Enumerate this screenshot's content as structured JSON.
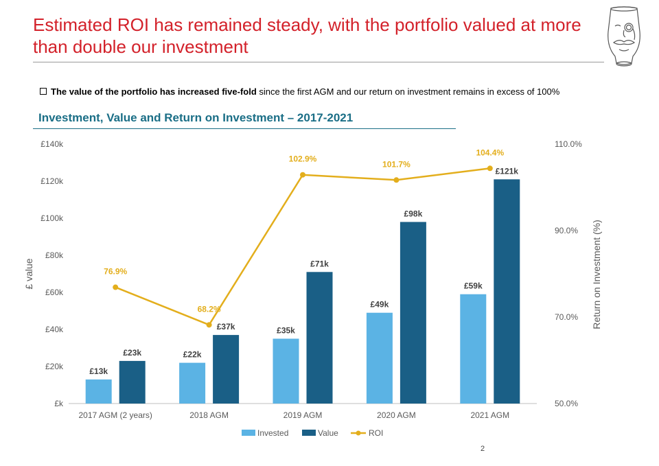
{
  "slide": {
    "title": "Estimated ROI has remained steady, with the portfolio valued at more than double our investment",
    "bullet_bold": "The value of the portfolio has increased five-fold",
    "bullet_rest": " since the first AGM and our return on investment remains in excess of 100%",
    "page_number": "2"
  },
  "colors": {
    "title": "#d3212a",
    "chart_title": "#1a6e86",
    "invested": "#5bb3e4",
    "value": "#1a5f86",
    "roi": "#e3ae1c"
  },
  "icons": [
    "whisky-glass-monocle-logo-icon"
  ],
  "chart_data": {
    "type": "bar",
    "title": "Investment, Value and Return on Investment – 2017-2021",
    "categories": [
      "2017 AGM (2 years)",
      "2018 AGM",
      "2019 AGM",
      "2020 AGM",
      "2021 AGM"
    ],
    "series": [
      {
        "name": "Invested",
        "type": "bar",
        "axis": "left",
        "values": [
          13,
          22,
          35,
          49,
          59
        ],
        "labels": [
          "£13k",
          "£22k",
          "£35k",
          "£49k",
          "£59k"
        ]
      },
      {
        "name": "Value",
        "type": "bar",
        "axis": "left",
        "values": [
          23,
          37,
          71,
          98,
          121
        ],
        "labels": [
          "£23k",
          "£37k",
          "£71k",
          "£98k",
          "£121k"
        ]
      },
      {
        "name": "ROI",
        "type": "line",
        "axis": "right",
        "values": [
          76.9,
          68.2,
          102.9,
          101.7,
          104.4
        ],
        "labels": [
          "76.9%",
          "68.2%",
          "102.9%",
          "101.7%",
          "104.4%"
        ]
      }
    ],
    "ylabel": "£ value",
    "y2label": "Return on Investment (%)",
    "ylim": [
      0,
      140
    ],
    "y2lim": [
      50,
      110
    ],
    "yticks": [
      "£k",
      "£20k",
      "£40k",
      "£60k",
      "£80k",
      "£100k",
      "£120k",
      "£140k"
    ],
    "y2ticks": [
      "50.0%",
      "70.0%",
      "90.0%",
      "110.0%"
    ],
    "legend": "bottom",
    "grid": false
  }
}
